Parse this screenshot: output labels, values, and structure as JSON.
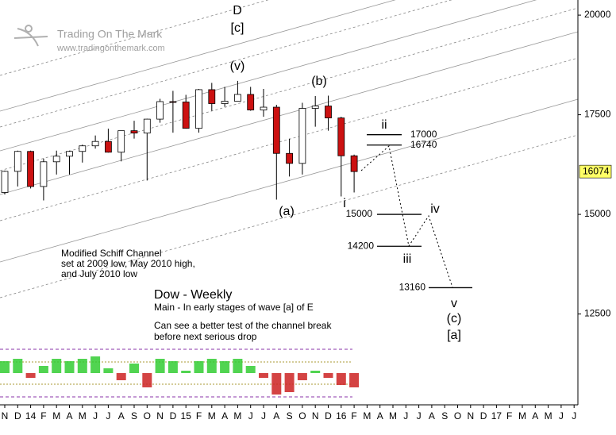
{
  "chart_data": {
    "type": "candlestick",
    "title": "Dow - Weekly",
    "subtitle": "Main - In early stages of wave [a] of E",
    "notes": [
      "Can see a better test of the channel break",
      "before next serious drop"
    ],
    "channel_note": [
      "Modified Schiff Channel",
      "set at 2009 low, May 2010 high,",
      "and July 2010 low"
    ],
    "watermark": [
      "Trading On The Mark",
      "www.tradingonthemark.com"
    ],
    "categories": [
      "N",
      "D",
      "14",
      "F",
      "M",
      "A",
      "M",
      "J",
      "J",
      "A",
      "S",
      "O",
      "N",
      "D",
      "15",
      "F",
      "M",
      "A",
      "M",
      "J",
      "J",
      "A",
      "S",
      "O",
      "N",
      "D",
      "16",
      "F",
      "M",
      "A",
      "M",
      "J",
      "J",
      "A",
      "S",
      "O",
      "N",
      "D",
      "17",
      "F",
      "M",
      "A",
      "M",
      "J",
      "J"
    ],
    "open": [
      15550,
      16080,
      16580,
      15700,
      16320,
      16460,
      16580,
      16720,
      16830,
      16560,
      17100,
      17040,
      17390,
      17830,
      17820,
      17160,
      18130,
      17780,
      17840,
      18010,
      17620,
      17690,
      16530,
      16280,
      17660,
      17720,
      17420,
      16470,
      null,
      null,
      null,
      null,
      null,
      null,
      null,
      null,
      null,
      null,
      null,
      null,
      null,
      null,
      null,
      null,
      null
    ],
    "high": [
      16100,
      16600,
      16600,
      16400,
      16600,
      16600,
      16750,
      16980,
      17150,
      17100,
      17350,
      17400,
      17900,
      18100,
      18000,
      18150,
      18300,
      18200,
      18350,
      18200,
      18150,
      17750,
      16900,
      17800,
      17970,
      17980,
      17450,
      16500,
      null,
      null,
      null,
      null,
      null,
      null,
      null,
      null,
      null,
      null,
      null,
      null,
      null,
      null,
      null,
      null,
      null
    ],
    "low": [
      15500,
      15700,
      15650,
      15350,
      16000,
      16000,
      16300,
      16650,
      16550,
      16330,
      16900,
      15850,
      17300,
      17050,
      17150,
      17050,
      17600,
      17700,
      17850,
      17600,
      17450,
      15370,
      15950,
      16000,
      17200,
      17100,
      15450,
      15550,
      null,
      null,
      null,
      null,
      null,
      null,
      null,
      null,
      null,
      null,
      null,
      null,
      null,
      null,
      null,
      null,
      null
    ],
    "close": [
      16080,
      16580,
      15700,
      16320,
      16460,
      16580,
      16720,
      16830,
      16560,
      17100,
      17040,
      17390,
      17830,
      17820,
      17160,
      18130,
      17780,
      17840,
      18010,
      17620,
      17690,
      16530,
      16280,
      17660,
      17720,
      17420,
      16470,
      16074,
      null,
      null,
      null,
      null,
      null,
      null,
      null,
      null,
      null,
      null,
      null,
      null,
      null,
      null,
      null,
      null,
      null
    ],
    "up_color": "#ffffff",
    "down_color": "#cc1111",
    "ylim": [
      10220,
      20380
    ],
    "yticks": [
      12500,
      15000,
      17500,
      20000
    ],
    "price_tag_color": "#ffff66",
    "levels": [
      17000,
      16740,
      15000,
      14200,
      13160
    ],
    "wave_labels": [
      "D",
      "[c]",
      "(v)",
      "(b)",
      "(a)",
      "i",
      "ii",
      "iii",
      "iv",
      "v",
      "(c)",
      "[a]"
    ],
    "indicator": {
      "values": [
        0.5,
        0.6,
        -0.2,
        0.3,
        0.6,
        0.5,
        0.6,
        0.7,
        0.2,
        -0.3,
        0.4,
        -0.6,
        0.6,
        0.5,
        0.1,
        0.5,
        0.6,
        0.5,
        0.6,
        0.3,
        -0.2,
        -0.9,
        -0.8,
        -0.3,
        0.1,
        -0.2,
        -0.5,
        -0.6,
        null,
        null,
        null,
        null,
        null,
        null,
        null,
        null,
        null,
        null,
        null,
        null,
        null,
        null,
        null,
        null,
        null
      ],
      "ylim": [
        -1,
        1
      ],
      "up_color": "#33cc33",
      "down_color": "#cc2222"
    }
  }
}
